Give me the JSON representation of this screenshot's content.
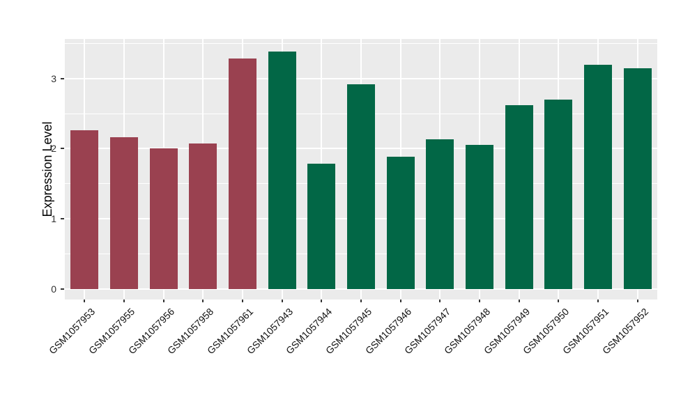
{
  "figure": {
    "background": "#FFFFFF",
    "panel_background": "#EBEBEB",
    "gridline_color": "#FFFFFF",
    "tick_color": "#333333"
  },
  "chart_data": {
    "type": "bar",
    "title": "",
    "xlabel": "",
    "ylabel": "Expression Level",
    "categories": [
      "GSM1057953",
      "GSM1057955",
      "GSM1057956",
      "GSM1057958",
      "GSM1057961",
      "GSM1057943",
      "GSM1057944",
      "GSM1057945",
      "GSM1057946",
      "GSM1057947",
      "GSM1057948",
      "GSM1057949",
      "GSM1057950",
      "GSM1057951",
      "GSM1057952"
    ],
    "series": [
      {
        "name": "Expression Level",
        "values": [
          2.26,
          2.16,
          2.0,
          2.07,
          3.28,
          3.38,
          1.79,
          2.92,
          1.89,
          2.13,
          2.05,
          2.62,
          2.7,
          3.19,
          3.14
        ]
      }
    ],
    "bar_colors": [
      "#9A4150",
      "#9A4150",
      "#9A4150",
      "#9A4150",
      "#9A4150",
      "#026746",
      "#026746",
      "#026746",
      "#026746",
      "#026746",
      "#026746",
      "#026746",
      "#026746",
      "#026746",
      "#026746"
    ],
    "group_colors": {
      "red_group": "#9A4150",
      "green_group": "#026746"
    },
    "y_ticks": [
      "0",
      "1",
      "2",
      "3"
    ],
    "y_tick_values": [
      0,
      1,
      2,
      3
    ],
    "y_minor_tick_values": [
      0.5,
      1.5,
      2.5,
      3.5
    ],
    "ylim": [
      -0.145,
      3.56
    ],
    "x_tick_angle": 45,
    "grid": true,
    "legend": "none"
  }
}
